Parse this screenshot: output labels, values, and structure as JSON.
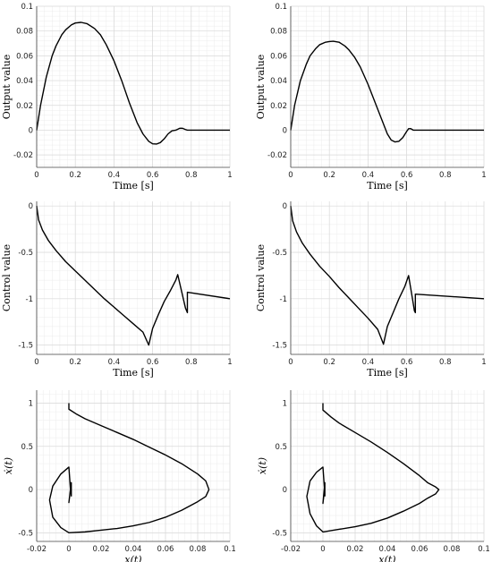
{
  "chart_data": [
    {
      "id": "output_a",
      "type": "line",
      "xlabel": "Time [s]",
      "ylabel": "Output value",
      "xlim": [
        0,
        1
      ],
      "ylim": [
        -0.03,
        0.1
      ],
      "xticks": [
        "0",
        "0.2",
        "0.4",
        "0.6",
        "0.8",
        "1"
      ],
      "yticks": [
        "-0.02",
        "0",
        "0.02",
        "0.04",
        "0.06",
        "0.08",
        "0.1"
      ],
      "grid": true,
      "series": [
        {
          "x": [
            0,
            0.02,
            0.05,
            0.08,
            0.1,
            0.13,
            0.15,
            0.18,
            0.2,
            0.23,
            0.26,
            0.3,
            0.33,
            0.36,
            0.4,
            0.44,
            0.48,
            0.52,
            0.55,
            0.58,
            0.6,
            0.62,
            0.64,
            0.66,
            0.68,
            0.7,
            0.72,
            0.74,
            0.755,
            0.77,
            0.78,
            1.0
          ],
          "y": [
            0,
            0.02,
            0.043,
            0.06,
            0.068,
            0.077,
            0.081,
            0.085,
            0.0865,
            0.087,
            0.086,
            0.082,
            0.077,
            0.069,
            0.056,
            0.04,
            0.022,
            0.006,
            -0.003,
            -0.009,
            -0.011,
            -0.0112,
            -0.01,
            -0.007,
            -0.003,
            -0.0005,
            0.0,
            0.0015,
            0.0015,
            0.0005,
            0.0,
            0.0
          ]
        }
      ]
    },
    {
      "id": "output_b",
      "type": "line",
      "xlabel": "Time [s]",
      "ylabel": "Output value",
      "xlim": [
        0,
        1
      ],
      "ylim": [
        -0.03,
        0.1
      ],
      "xticks": [
        "0",
        "0.2",
        "0.4",
        "0.6",
        "0.8",
        "1"
      ],
      "yticks": [
        "-0.02",
        "0",
        "0.02",
        "0.04",
        "0.06",
        "0.08",
        "0.1"
      ],
      "grid": true,
      "series": [
        {
          "x": [
            0,
            0.02,
            0.05,
            0.08,
            0.1,
            0.13,
            0.15,
            0.18,
            0.2,
            0.22,
            0.25,
            0.28,
            0.3,
            0.33,
            0.36,
            0.4,
            0.44,
            0.47,
            0.5,
            0.52,
            0.54,
            0.56,
            0.58,
            0.6,
            0.61,
            0.62,
            0.635,
            1.0
          ],
          "y": [
            0,
            0.02,
            0.04,
            0.053,
            0.06,
            0.066,
            0.069,
            0.071,
            0.0715,
            0.0718,
            0.071,
            0.068,
            0.065,
            0.059,
            0.051,
            0.037,
            0.021,
            0.009,
            -0.003,
            -0.008,
            -0.0095,
            -0.009,
            -0.006,
            -0.001,
            0.0012,
            0.0013,
            0.0,
            0.0
          ]
        }
      ]
    },
    {
      "id": "control_a",
      "type": "line",
      "xlabel": "Time [s]",
      "ylabel": "Control value",
      "xlim": [
        0,
        1
      ],
      "ylim": [
        -1.6,
        0.05
      ],
      "xticks": [
        "0",
        "0.2",
        "0.4",
        "0.6",
        "0.8",
        "1"
      ],
      "yticks": [
        "-1.5",
        "-1",
        "-0.5",
        "0"
      ],
      "grid": true,
      "series": [
        {
          "x": [
            0,
            0.01,
            0.03,
            0.06,
            0.1,
            0.15,
            0.2,
            0.25,
            0.3,
            0.35,
            0.4,
            0.45,
            0.5,
            0.55,
            0.58,
            0.58,
            0.6,
            0.63,
            0.66,
            0.69,
            0.72,
            0.73,
            0.73,
            0.75,
            0.77,
            0.78,
            0.78,
            1.0
          ],
          "y": [
            0,
            -0.15,
            -0.26,
            -0.37,
            -0.48,
            -0.6,
            -0.7,
            -0.8,
            -0.9,
            -1.0,
            -1.09,
            -1.18,
            -1.27,
            -1.36,
            -1.5,
            -1.5,
            -1.32,
            -1.17,
            -1.03,
            -0.92,
            -0.8,
            -0.74,
            -0.74,
            -0.92,
            -1.1,
            -1.15,
            -0.93,
            -1.0
          ]
        }
      ]
    },
    {
      "id": "control_b",
      "type": "line",
      "xlabel": "Time [s]",
      "ylabel": "Control value",
      "xlim": [
        0,
        1
      ],
      "ylim": [
        -1.6,
        0.05
      ],
      "xticks": [
        "0",
        "0.2",
        "0.4",
        "0.6",
        "0.8",
        "1"
      ],
      "yticks": [
        "-1.5",
        "-1",
        "-0.5",
        "0"
      ],
      "grid": true,
      "series": [
        {
          "x": [
            0,
            0.01,
            0.03,
            0.06,
            0.1,
            0.15,
            0.2,
            0.25,
            0.3,
            0.35,
            0.4,
            0.45,
            0.48,
            0.48,
            0.5,
            0.53,
            0.56,
            0.59,
            0.61,
            0.61,
            0.63,
            0.64,
            0.645,
            0.645,
            1.0
          ],
          "y": [
            0,
            -0.16,
            -0.28,
            -0.4,
            -0.52,
            -0.65,
            -0.76,
            -0.88,
            -0.99,
            -1.1,
            -1.21,
            -1.33,
            -1.49,
            -1.49,
            -1.3,
            -1.15,
            -1.0,
            -0.87,
            -0.75,
            -0.75,
            -1.0,
            -1.13,
            -1.15,
            -0.95,
            -1.0
          ]
        }
      ]
    },
    {
      "id": "phase_a",
      "type": "line",
      "xlabel": "x(t)",
      "ylabel": "ẋ(t)",
      "xlim": [
        -0.02,
        0.1
      ],
      "ylim": [
        -0.6,
        1.15
      ],
      "xticks": [
        "-0.02",
        "0",
        "0.02",
        "0.04",
        "0.06",
        "0.08",
        "0.1"
      ],
      "yticks": [
        "-0.5",
        "0",
        "0.5",
        "1"
      ],
      "grid": true,
      "series": [
        {
          "x": [
            0,
            0.0,
            0.005,
            0.01,
            0.02,
            0.03,
            0.04,
            0.05,
            0.06,
            0.07,
            0.08,
            0.085,
            0.087,
            0.085,
            0.08,
            0.07,
            0.06,
            0.05,
            0.04,
            0.03,
            0.02,
            0.01,
            0.0,
            -0.005,
            -0.01,
            -0.012,
            -0.01,
            -0.005,
            0.0,
            0.001,
            0.0,
            0.0015,
            0.0015
          ],
          "y": [
            1.0,
            0.93,
            0.87,
            0.82,
            0.74,
            0.66,
            0.58,
            0.49,
            0.4,
            0.3,
            0.18,
            0.1,
            0.0,
            -0.08,
            -0.14,
            -0.24,
            -0.32,
            -0.38,
            -0.42,
            -0.45,
            -0.47,
            -0.49,
            -0.5,
            -0.44,
            -0.32,
            -0.12,
            0.04,
            0.18,
            0.26,
            0.0,
            -0.15,
            0.08,
            -0.08
          ]
        }
      ]
    },
    {
      "id": "phase_b",
      "type": "line",
      "xlabel": "x(t)",
      "ylabel": "ẋ(t)",
      "xlim": [
        -0.02,
        0.1
      ],
      "ylim": [
        -0.6,
        1.15
      ],
      "xticks": [
        "-0.02",
        "0",
        "0.02",
        "0.04",
        "0.06",
        "0.08",
        "0.1"
      ],
      "yticks": [
        "-0.5",
        "0",
        "0.5",
        "1"
      ],
      "grid": true,
      "series": [
        {
          "x": [
            0,
            0.0,
            0.005,
            0.01,
            0.02,
            0.03,
            0.04,
            0.05,
            0.06,
            0.065,
            0.07,
            0.072,
            0.07,
            0.065,
            0.06,
            0.05,
            0.04,
            0.03,
            0.02,
            0.01,
            0.0,
            -0.004,
            -0.008,
            -0.01,
            -0.008,
            -0.004,
            0.0,
            0.001,
            0.0,
            0.0012,
            0.0012
          ],
          "y": [
            1.0,
            0.92,
            0.84,
            0.77,
            0.66,
            0.55,
            0.43,
            0.3,
            0.16,
            0.08,
            0.03,
            0.0,
            -0.05,
            -0.1,
            -0.16,
            -0.25,
            -0.33,
            -0.39,
            -0.43,
            -0.46,
            -0.49,
            -0.42,
            -0.28,
            -0.08,
            0.1,
            0.2,
            0.26,
            0.0,
            -0.16,
            0.08,
            -0.08
          ]
        }
      ]
    }
  ]
}
